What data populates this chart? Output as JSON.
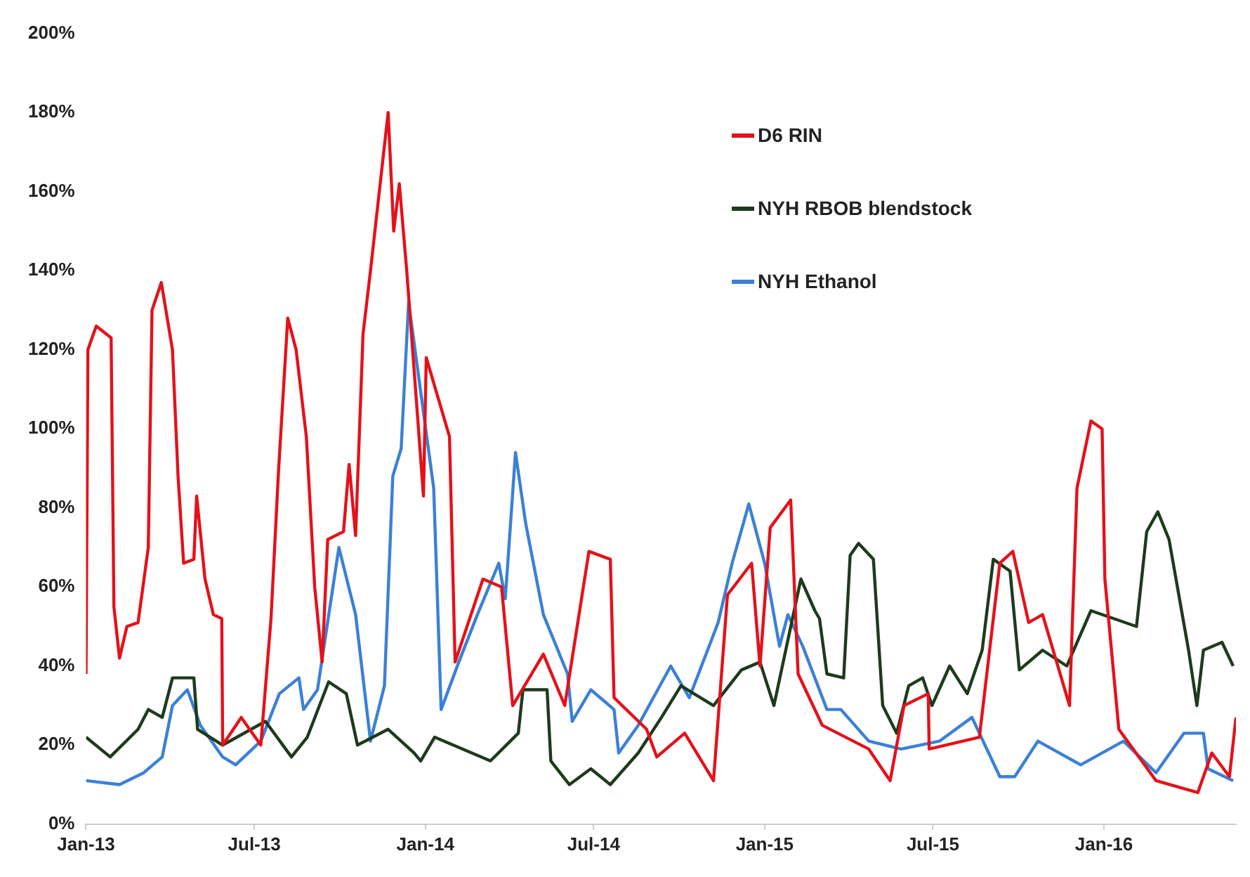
{
  "chart_data": {
    "type": "line",
    "legend": "top right",
    "grid": false,
    "marker": "none",
    "line_style": "solid",
    "xlim": [
      "2013-01-01",
      "2016-05-22"
    ],
    "xticks": [
      {
        "value": "2013-01",
        "label": "Jan-13"
      },
      {
        "value": "2013-07",
        "label": "Jul-13"
      },
      {
        "value": "2014-01",
        "label": "Jan-14"
      },
      {
        "value": "2014-07",
        "label": "Jul-14"
      },
      {
        "value": "2015-01",
        "label": "Jan-15"
      },
      {
        "value": "2015-07",
        "label": "Jul-15"
      },
      {
        "value": "2016-01",
        "label": "Jan-16"
      }
    ],
    "ylim": [
      0,
      200
    ],
    "yticks": [
      {
        "value": 0,
        "label": "0%"
      },
      {
        "value": 20,
        "label": "20%"
      },
      {
        "value": 40,
        "label": "40%"
      },
      {
        "value": 60,
        "label": "60%"
      },
      {
        "value": 80,
        "label": "80%"
      },
      {
        "value": 100,
        "label": "100%"
      },
      {
        "value": 120,
        "label": "120%"
      },
      {
        "value": 140,
        "label": "140%"
      },
      {
        "value": 160,
        "label": "160%"
      },
      {
        "value": 180,
        "label": "180%"
      },
      {
        "value": 200,
        "label": "200%"
      }
    ],
    "series": [
      {
        "name": "D6 RIN",
        "color": "#e3121b",
        "x": [
          "2013-01-01",
          "2013-01-03",
          "2013-01-12",
          "2013-01-28",
          "2013-01-31",
          "2013-02-06",
          "2013-02-14",
          "2013-02-26",
          "2013-03-09",
          "2013-03-13",
          "2013-03-23",
          "2013-04-04",
          "2013-04-10",
          "2013-04-16",
          "2013-04-27",
          "2013-04-30",
          "2013-05-09",
          "2013-05-18",
          "2013-05-27",
          "2013-05-28",
          "2013-06-17",
          "2013-07-08",
          "2013-07-19",
          "2013-07-27",
          "2013-08-06",
          "2013-08-15",
          "2013-08-26",
          "2013-09-04",
          "2013-09-12",
          "2013-09-18",
          "2013-10-05",
          "2013-10-11",
          "2013-10-18",
          "2013-10-26",
          "2013-11-03",
          "2013-11-22",
          "2013-11-28",
          "2013-12-04",
          "2013-12-12",
          "2013-12-30",
          "2014-01-02",
          "2014-01-27",
          "2014-02-02",
          "2014-03-04",
          "2014-03-24",
          "2014-04-05",
          "2014-05-08",
          "2014-05-31",
          "2014-06-26",
          "2014-07-19",
          "2014-07-23",
          "2014-08-27",
          "2014-09-07",
          "2014-10-07",
          "2014-11-07",
          "2014-11-22",
          "2014-12-18",
          "2014-12-27",
          "2015-01-07",
          "2015-01-29",
          "2015-02-06",
          "2015-03-04",
          "2015-04-23",
          "2015-05-16",
          "2015-05-31",
          "2015-06-26",
          "2015-06-27",
          "2015-08-20",
          "2015-09-11",
          "2015-09-25",
          "2015-10-12",
          "2015-10-27",
          "2015-11-25",
          "2015-12-03",
          "2015-12-18",
          "2015-12-30",
          "2016-01-02",
          "2016-01-17",
          "2016-02-26",
          "2016-04-11",
          "2016-04-26",
          "2016-05-15",
          "2016-05-22"
        ],
        "values": [
          38,
          120,
          126,
          123,
          55,
          42,
          50,
          51,
          70,
          130,
          137,
          120,
          88,
          66,
          67,
          83,
          62,
          53,
          52,
          20,
          27,
          20,
          52,
          89,
          128,
          120,
          98,
          60,
          41,
          72,
          74,
          91,
          73,
          124,
          140,
          180,
          150,
          162,
          140,
          83,
          118,
          98,
          41,
          62,
          60,
          30,
          43,
          30,
          69,
          67,
          32,
          24,
          17,
          23,
          11,
          58,
          66,
          40,
          75,
          82,
          38,
          25,
          19,
          11,
          30,
          33,
          19,
          22,
          66,
          69,
          51,
          53,
          30,
          85,
          102,
          100,
          62,
          24,
          11,
          8,
          18,
          12,
          27
        ]
      },
      {
        "name": "NYH RBOB blendstock",
        "color": "#1e3a1c",
        "x": [
          "2013-01-01",
          "2013-01-27",
          "2013-02-26",
          "2013-03-09",
          "2013-03-24",
          "2013-04-04",
          "2013-04-27",
          "2013-05-01",
          "2013-05-28",
          "2013-07-13",
          "2013-08-10",
          "2013-08-27",
          "2013-09-19",
          "2013-10-08",
          "2013-10-20",
          "2013-11-22",
          "2013-12-20",
          "2013-12-27",
          "2014-01-11",
          "2014-03-12",
          "2014-04-11",
          "2014-04-16",
          "2014-05-12",
          "2014-05-16",
          "2014-06-05",
          "2014-06-28",
          "2014-07-19",
          "2014-08-18",
          "2014-09-12",
          "2014-10-03",
          "2014-11-07",
          "2014-12-07",
          "2014-12-27",
          "2015-01-11",
          "2015-02-09",
          "2015-02-24",
          "2015-03-01",
          "2015-03-09",
          "2015-03-27",
          "2015-04-03",
          "2015-04-12",
          "2015-04-28",
          "2015-05-08",
          "2015-05-23",
          "2015-06-05",
          "2015-06-20",
          "2015-06-30",
          "2015-07-19",
          "2015-08-07",
          "2015-08-23",
          "2015-09-04",
          "2015-09-22",
          "2015-10-02",
          "2015-10-27",
          "2015-11-22",
          "2015-12-18",
          "2016-02-05",
          "2016-02-16",
          "2016-02-28",
          "2016-03-11",
          "2016-04-01",
          "2016-04-10",
          "2016-04-17",
          "2016-05-07",
          "2016-05-19"
        ],
        "values": [
          22,
          17,
          24,
          29,
          27,
          37,
          37,
          24,
          20,
          26,
          17,
          22,
          36,
          33,
          20,
          24,
          18,
          16,
          22,
          16,
          23,
          34,
          34,
          16,
          10,
          14,
          10,
          18,
          27,
          35,
          30,
          39,
          41,
          30,
          62,
          54,
          52,
          38,
          37,
          68,
          71,
          67,
          30,
          23,
          35,
          37,
          30,
          40,
          33,
          44,
          67,
          64,
          39,
          44,
          40,
          54,
          50,
          74,
          79,
          72,
          44,
          30,
          44,
          46,
          40
        ]
      },
      {
        "name": "NYH Ethanol",
        "color": "#3b80d6",
        "x": [
          "2013-01-01",
          "2013-02-06",
          "2013-03-04",
          "2013-03-24",
          "2013-04-04",
          "2013-04-20",
          "2013-05-04",
          "2013-05-28",
          "2013-06-11",
          "2013-07-08",
          "2013-07-28",
          "2013-08-18",
          "2013-08-23",
          "2013-09-07",
          "2013-09-30",
          "2013-10-18",
          "2013-11-03",
          "2013-11-18",
          "2013-11-27",
          "2013-12-06",
          "2013-12-14",
          "2014-01-10",
          "2014-01-18",
          "2014-02-06",
          "2014-02-26",
          "2014-03-21",
          "2014-03-28",
          "2014-04-08",
          "2014-04-19",
          "2014-05-08",
          "2014-06-03",
          "2014-06-08",
          "2014-06-28",
          "2014-07-23",
          "2014-07-28",
          "2014-08-18",
          "2014-09-22",
          "2014-10-12",
          "2014-11-12",
          "2014-11-27",
          "2014-12-15",
          "2015-01-01",
          "2015-01-17",
          "2015-01-26",
          "2015-02-11",
          "2015-03-09",
          "2015-03-24",
          "2015-04-23",
          "2015-05-28",
          "2015-07-08",
          "2015-08-12",
          "2015-09-11",
          "2015-09-27",
          "2015-10-22",
          "2015-12-07",
          "2016-01-22",
          "2016-02-26",
          "2016-03-27",
          "2016-04-17",
          "2016-04-22",
          "2016-05-19"
        ],
        "values": [
          11,
          10,
          13,
          17,
          30,
          34,
          25,
          17,
          15,
          21,
          33,
          37,
          29,
          34,
          70,
          53,
          21,
          35,
          88,
          95,
          132,
          85,
          29,
          41,
          53,
          66,
          57,
          94,
          76,
          53,
          38,
          26,
          34,
          29,
          18,
          25,
          40,
          32,
          51,
          66,
          81,
          66,
          45,
          53,
          45,
          29,
          29,
          21,
          19,
          21,
          27,
          12,
          12,
          21,
          15,
          21,
          13,
          23,
          23,
          14,
          11
        ]
      }
    ]
  }
}
